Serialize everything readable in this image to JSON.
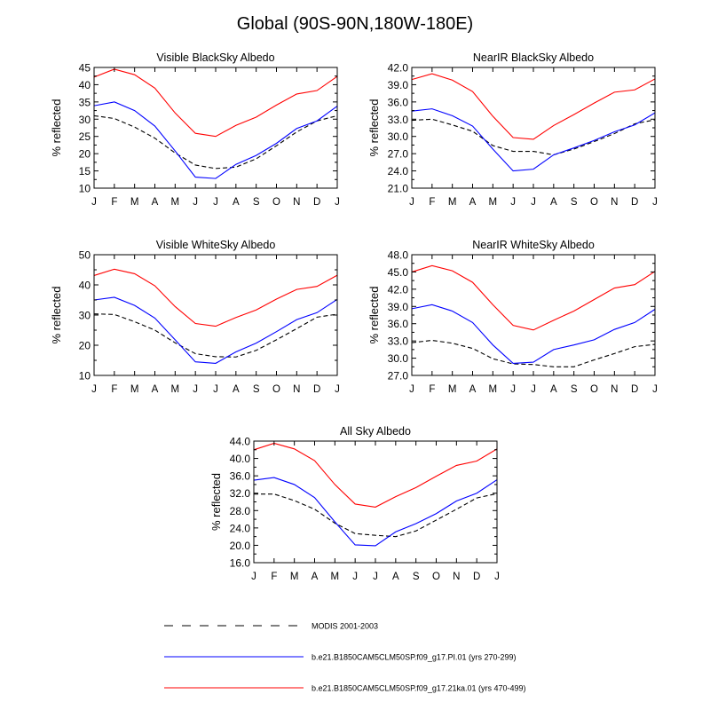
{
  "figure_title": "Global (90S-90N,180W-180E)",
  "legend": {
    "entries": [
      {
        "label": "MODIS 2001-2003",
        "color": "#000000",
        "dash": true
      },
      {
        "label": "b.e21.B1850CAM5CLM50SP.f09_g17.PI.01 (yrs 270-299)",
        "color": "#0000ff",
        "dash": false
      },
      {
        "label": "b.e21.B1850CAM5CLM50SP.f09_g17.21ka.01 (yrs 470-499)",
        "color": "#ff0000",
        "dash": false
      }
    ]
  },
  "chart_data": [
    {
      "type": "line",
      "title": "Visible BlackSky Albedo",
      "ylabel": "% reflected",
      "xlabel": "",
      "categories": [
        "J",
        "F",
        "M",
        "A",
        "M",
        "J",
        "J",
        "A",
        "S",
        "O",
        "N",
        "D",
        "J"
      ],
      "ylim": [
        10,
        45
      ],
      "yticks": [
        "10",
        "15",
        "20",
        "25",
        "30",
        "35",
        "40",
        "45"
      ],
      "series": [
        {
          "name": "MODIS 2001-2003",
          "color": "#000000",
          "dash": true,
          "values": [
            31.0,
            30.2,
            27.7,
            24.5,
            20.2,
            16.7,
            15.7,
            16.1,
            18.5,
            22.3,
            26.3,
            29.5,
            31.0
          ]
        },
        {
          "name": "PI.01",
          "color": "#0000ff",
          "dash": false,
          "values": [
            33.9,
            35.0,
            32.5,
            28.0,
            20.8,
            13.2,
            12.8,
            16.9,
            19.5,
            23.0,
            27.3,
            29.5,
            33.8
          ]
        },
        {
          "name": "21ka.01",
          "color": "#ff0000",
          "dash": false,
          "values": [
            42.2,
            44.5,
            42.9,
            39.0,
            31.8,
            25.9,
            25.0,
            28.2,
            30.6,
            34.1,
            37.3,
            38.3,
            42.4
          ]
        }
      ]
    },
    {
      "type": "line",
      "title": "NearIR BlackSky Albedo",
      "ylabel": "% reflected",
      "xlabel": "",
      "categories": [
        "J",
        "F",
        "M",
        "A",
        "M",
        "J",
        "J",
        "A",
        "S",
        "O",
        "N",
        "D",
        "J"
      ],
      "ylim": [
        21.0,
        42.0
      ],
      "yticks": [
        "21.0",
        "24.0",
        "27.0",
        "30.0",
        "33.0",
        "36.0",
        "39.0",
        "42.0"
      ],
      "series": [
        {
          "name": "MODIS 2001-2003",
          "color": "#000000",
          "dash": true,
          "values": [
            32.8,
            33.0,
            32.0,
            30.9,
            28.4,
            27.4,
            27.4,
            26.8,
            27.8,
            29.1,
            30.5,
            32.2,
            32.9
          ]
        },
        {
          "name": "PI.01",
          "color": "#0000ff",
          "dash": false,
          "values": [
            34.4,
            34.8,
            33.6,
            31.8,
            27.8,
            24.0,
            24.3,
            26.8,
            28.0,
            29.3,
            30.8,
            32.0,
            34.1
          ]
        },
        {
          "name": "21ka.01",
          "color": "#ff0000",
          "dash": false,
          "values": [
            39.9,
            40.9,
            39.8,
            37.8,
            33.5,
            29.8,
            29.5,
            31.9,
            33.8,
            35.8,
            37.7,
            38.1,
            40.0
          ]
        }
      ]
    },
    {
      "type": "line",
      "title": "Visible WhiteSky Albedo",
      "ylabel": "% reflected",
      "xlabel": "",
      "categories": [
        "J",
        "F",
        "M",
        "A",
        "M",
        "J",
        "J",
        "A",
        "S",
        "O",
        "N",
        "D",
        "J"
      ],
      "ylim": [
        10,
        50
      ],
      "yticks": [
        "10",
        "20",
        "30",
        "40",
        "50"
      ],
      "series": [
        {
          "name": "MODIS 2001-2003",
          "color": "#000000",
          "dash": true,
          "values": [
            30.4,
            30.2,
            27.8,
            25.0,
            20.8,
            17.2,
            16.2,
            16.1,
            18.3,
            21.8,
            25.5,
            29.3,
            30.3
          ]
        },
        {
          "name": "PI.01",
          "color": "#0000ff",
          "dash": false,
          "values": [
            35.0,
            35.9,
            33.2,
            29.0,
            21.8,
            14.5,
            14.0,
            17.8,
            20.7,
            24.5,
            28.5,
            30.8,
            35.2
          ]
        },
        {
          "name": "21ka.01",
          "color": "#ff0000",
          "dash": false,
          "values": [
            43.1,
            45.2,
            43.7,
            39.7,
            32.8,
            27.2,
            26.3,
            29.2,
            31.7,
            35.3,
            38.5,
            39.5,
            43.2
          ]
        }
      ]
    },
    {
      "type": "line",
      "title": "NearIR WhiteSky Albedo",
      "ylabel": "% reflected",
      "xlabel": "",
      "categories": [
        "J",
        "F",
        "M",
        "A",
        "M",
        "J",
        "J",
        "A",
        "S",
        "O",
        "N",
        "D",
        "J"
      ],
      "ylim": [
        27.0,
        48.0
      ],
      "yticks": [
        "27.0",
        "30.0",
        "33.0",
        "36.0",
        "39.0",
        "42.0",
        "45.0",
        "48.0"
      ],
      "series": [
        {
          "name": "MODIS 2001-2003",
          "color": "#000000",
          "dash": true,
          "values": [
            32.7,
            33.1,
            32.6,
            31.7,
            29.9,
            29.0,
            28.9,
            28.5,
            28.5,
            29.7,
            30.8,
            32.0,
            32.4
          ]
        },
        {
          "name": "PI.01",
          "color": "#0000ff",
          "dash": false,
          "values": [
            38.6,
            39.3,
            38.2,
            36.2,
            32.3,
            29.1,
            29.3,
            31.5,
            32.3,
            33.2,
            35.0,
            36.2,
            38.5
          ]
        },
        {
          "name": "21ka.01",
          "color": "#ff0000",
          "dash": false,
          "values": [
            45.0,
            46.1,
            45.2,
            43.2,
            39.3,
            35.7,
            34.9,
            36.6,
            38.2,
            40.2,
            42.2,
            42.8,
            45.1
          ]
        }
      ]
    },
    {
      "type": "line",
      "title": "All Sky Albedo",
      "ylabel": "% reflected",
      "xlabel": "",
      "categories": [
        "J",
        "F",
        "M",
        "A",
        "M",
        "J",
        "J",
        "A",
        "S",
        "O",
        "N",
        "D",
        "J"
      ],
      "ylim": [
        16.0,
        44.0
      ],
      "yticks": [
        "16.0",
        "20.0",
        "24.0",
        "28.0",
        "32.0",
        "36.0",
        "40.0",
        "44.0"
      ],
      "series": [
        {
          "name": "MODIS 2001-2003",
          "color": "#000000",
          "dash": true,
          "values": [
            31.8,
            31.8,
            30.3,
            28.3,
            25.1,
            22.7,
            22.3,
            22.0,
            23.3,
            25.8,
            28.3,
            30.9,
            31.9
          ]
        },
        {
          "name": "PI.01",
          "color": "#0000ff",
          "dash": false,
          "values": [
            35.0,
            35.6,
            34.0,
            31.0,
            25.4,
            20.1,
            19.9,
            23.1,
            25.0,
            27.3,
            30.2,
            32.0,
            35.1
          ]
        },
        {
          "name": "21ka.01",
          "color": "#ff0000",
          "dash": false,
          "values": [
            42.0,
            43.5,
            42.2,
            39.5,
            34.0,
            29.5,
            28.8,
            31.2,
            33.3,
            35.9,
            38.4,
            39.4,
            42.2
          ]
        }
      ]
    }
  ]
}
